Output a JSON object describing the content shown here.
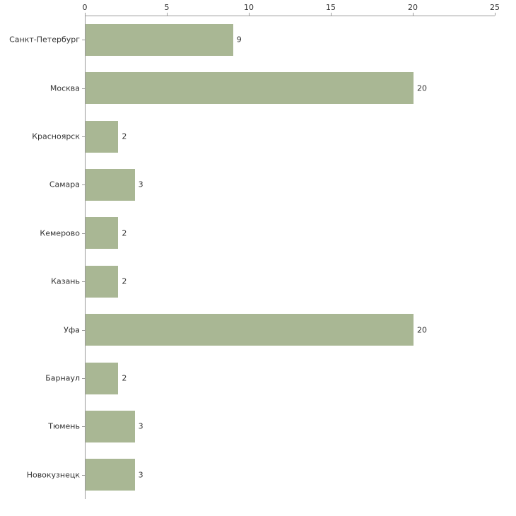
{
  "chart_data": {
    "type": "bar",
    "orientation": "horizontal",
    "title": "",
    "xlabel": "",
    "ylabel": "",
    "categories": [
      "Санкт-Петербург",
      "Москва",
      "Красноярск",
      "Самара",
      "Кемерово",
      "Казань",
      "Уфа",
      "Барнаул",
      "Тюмень",
      "Новокузнецк"
    ],
    "values": [
      9,
      20,
      2,
      3,
      2,
      2,
      20,
      2,
      3,
      3
    ],
    "value_labels": [
      "9",
      "20",
      "2",
      "3",
      "2",
      "2",
      "20",
      "2",
      "3",
      "3"
    ],
    "xlim": [
      0,
      25
    ],
    "x_ticks": [
      0,
      5,
      10,
      15,
      20,
      25
    ],
    "x_tick_labels": [
      "0",
      "5",
      "10",
      "15",
      "20",
      "25"
    ],
    "grid": false,
    "legend": "none",
    "colors": {
      "bar_fill": "#a9b794",
      "axis": "#9a9a9a",
      "text": "#333333",
      "background": "#ffffff"
    }
  }
}
